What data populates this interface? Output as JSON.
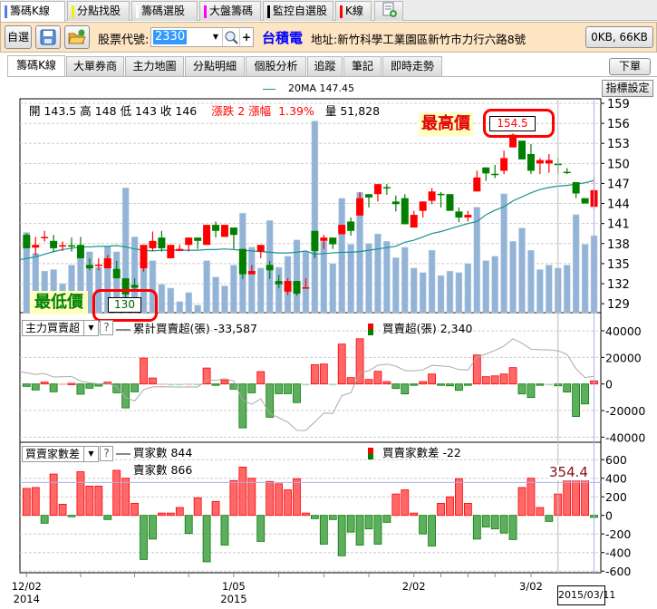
{
  "top_tabs": [
    {
      "label": "籌碼K線",
      "color": "#4a7ee8",
      "active": true
    },
    {
      "label": "分點找股",
      "color": "#f5f000"
    },
    {
      "label": "籌碼選股",
      "color": "#ffffff"
    },
    {
      "label": "大盤籌碼",
      "color": "#ff00ff"
    },
    {
      "label": "監控自選股",
      "color": "#000000"
    },
    {
      "label": "K線",
      "color": "#ff0000"
    }
  ],
  "toolbar": {
    "watchlist_label": "自選",
    "stock_code_label": "股票代號:",
    "stock_code_value": "2330",
    "add_label": "+",
    "stock_name": "台積電",
    "address": "地址:新竹科學工業園區新竹市力行六路8號",
    "size_label": "0KB, 66KB"
  },
  "sub_tabs": [
    "籌碼K線",
    "大單券商",
    "主力地圖",
    "分點明細",
    "個股分析",
    "追蹤",
    "筆記",
    "即時走勢"
  ],
  "order_button": "下單",
  "indicator_button": "指標設定",
  "price_panel": {
    "ma_legend": "20MA 147.45",
    "open_label": "開 143.5",
    "high_label": "高 148",
    "low_label": "低 143",
    "close_label": "收 146",
    "change_label": "漲跌 2",
    "pct_label": "漲幅",
    "pct_value": "1.39%",
    "volume_label": "量 51,828",
    "max_tag": "最高價",
    "max_value": "154.5",
    "min_tag": "最低價",
    "min_value": "130"
  },
  "net_panel": {
    "selector": "主力買賣超",
    "help": "?",
    "legend_cum": "累計買賣超(張) -33,587",
    "legend_net": "買賣超(張) 2,340"
  },
  "diff_panel": {
    "selector": "買賣家數差",
    "help": "?",
    "legend_buyers": "買家數 844",
    "legend_sellers": "賣家數 866",
    "legend_diff": "買賣家數差 -22",
    "crosshair_value": "354.4"
  },
  "cursor_date": "2015/03/11",
  "colors": {
    "up": "#ff0000",
    "down": "#007f00",
    "volume": "#93b4d6",
    "ma": "#1a9090",
    "toolbar": "#fde4c3",
    "link_blue": "#0000ff"
  },
  "chart_data": [
    {
      "type": "candlestick",
      "title": "",
      "ylim": [
        127.5,
        160
      ],
      "yticks": [
        159,
        156,
        153,
        150,
        147,
        144,
        141,
        138,
        135,
        132,
        129
      ],
      "grid": true,
      "ohlc": [
        [
          139.3,
          139.5,
          137.3,
          137.3
        ],
        [
          137.4,
          139.0,
          136.2,
          137.8
        ],
        [
          138.95,
          139.9,
          138.3,
          139.0
        ],
        [
          138.4,
          139.3,
          136.7,
          137.3
        ],
        [
          137.7,
          138.3,
          136.9,
          137.75
        ],
        [
          137.75,
          138.9,
          136.8,
          137.7
        ],
        [
          137.8,
          139.0,
          135.8,
          135.8
        ],
        [
          134.8,
          135.8,
          134.0,
          134.3
        ],
        [
          134.8,
          135.8,
          134.0,
          134.85
        ],
        [
          134.3,
          136.3,
          134.3,
          135.8
        ],
        [
          134.2,
          135.4,
          132.8,
          132.8
        ],
        [
          132.8,
          132.8,
          130.0,
          130.4
        ],
        [
          131.8,
          132.8,
          130.8,
          131.4
        ],
        [
          134.3,
          137.8,
          133.8,
          137.8
        ],
        [
          137.3,
          139.8,
          136.9,
          138.4
        ],
        [
          138.9,
          139.9,
          136.8,
          137.3
        ],
        [
          135.8,
          137.8,
          135.8,
          137.8
        ],
        [
          136.9,
          137.8,
          136.9,
          137.2
        ],
        [
          137.8,
          138.9,
          136.8,
          138.9
        ],
        [
          138.9,
          138.9,
          137.2,
          138.4
        ],
        [
          137.8,
          140.8,
          137.8,
          140.8
        ],
        [
          140.8,
          141.3,
          138.9,
          139.9
        ],
        [
          139.0,
          140.8,
          139.0,
          140.8
        ],
        [
          140.4,
          140.4,
          137.2,
          139.3
        ],
        [
          137.2,
          137.2,
          132.7,
          133.4
        ],
        [
          133.4,
          134.8,
          133.4,
          133.9
        ],
        [
          136.8,
          137.8,
          135.8,
          137.8
        ],
        [
          134.8,
          135.4,
          132.7,
          134.0
        ],
        [
          132.4,
          133.3,
          131.3,
          131.9
        ],
        [
          130.8,
          132.8,
          130.3,
          132.4
        ],
        [
          132.4,
          132.4,
          130.2,
          130.5
        ],
        [
          131.4,
          132.8,
          131.3,
          131.45
        ],
        [
          139.9,
          139.9,
          135.8,
          136.9
        ],
        [
          138.4,
          139.3,
          137.2,
          138.9
        ],
        [
          138.9,
          138.9,
          137.2,
          137.9
        ],
        [
          139.4,
          140.8,
          139.4,
          140.8
        ],
        [
          141.3,
          141.9,
          139.2,
          139.9
        ],
        [
          142.2,
          145.7,
          142.2,
          144.8
        ],
        [
          145.4,
          145.4,
          143.4,
          144.9
        ],
        [
          145.4,
          146.9,
          144.3,
          146.9
        ],
        [
          146.45,
          146.9,
          145.3,
          146.4
        ],
        [
          144.3,
          145.2,
          142.8,
          143.9
        ],
        [
          144.8,
          145.4,
          140.9,
          140.9
        ],
        [
          140.4,
          142.9,
          140.4,
          142.3
        ],
        [
          142.9,
          144.3,
          141.9,
          144.3
        ],
        [
          144.4,
          146.3,
          143.9,
          145.8
        ],
        [
          145.45,
          145.7,
          143.4,
          145.4
        ],
        [
          145.4,
          145.4,
          142.9,
          142.9
        ],
        [
          142.8,
          143.4,
          141.2,
          141.9
        ],
        [
          141.9,
          142.9,
          141.3,
          142.3
        ],
        [
          145.8,
          148.9,
          145.8,
          147.9
        ],
        [
          149.4,
          149.4,
          147.4,
          148.5
        ],
        [
          148.45,
          149.8,
          147.8,
          148.4
        ],
        [
          148.9,
          151.9,
          148.4,
          150.8
        ],
        [
          152.4,
          154.5,
          152.4,
          154.3
        ],
        [
          153.4,
          153.4,
          150.6,
          150.6
        ],
        [
          151.4,
          152.9,
          148.4,
          148.9
        ],
        [
          150.0,
          150.8,
          148.4,
          150.5
        ],
        [
          150.0,
          151.4,
          148.6,
          150.5
        ],
        [
          149.95,
          150.8,
          148.4,
          149.9
        ],
        [
          148.75,
          149.3,
          148.4,
          148.7
        ],
        [
          147.2,
          147.2,
          144.8,
          145.5
        ],
        [
          144.8,
          144.8,
          144.0,
          144.0
        ],
        [
          143.5,
          148,
          143,
          146
        ]
      ],
      "ma20": [
        135.6,
        136.0,
        136.4,
        136.8,
        137.1,
        137.3,
        137.5,
        137.5,
        137.6,
        137.6,
        137.7,
        137.5,
        137.2,
        137.0,
        136.9,
        137.0,
        137.0,
        137.0,
        137.0,
        137.0,
        137.1,
        137.1,
        137.2,
        137.1,
        137.0,
        136.9,
        136.8,
        136.7,
        136.6,
        136.6,
        136.7,
        136.9,
        136.4,
        136.5,
        136.6,
        136.7,
        136.7,
        136.8,
        137.0,
        137.2,
        137.4,
        137.6,
        138.2,
        138.5,
        139.0,
        139.5,
        139.8,
        140.2,
        140.6,
        141.0,
        141.3,
        142.3,
        143.0,
        143.5,
        144.4,
        145.0,
        145.6,
        146.1,
        146.4,
        146.6,
        146.7,
        146.9,
        147.1,
        147.45
      ],
      "volume": [
        54000,
        40000,
        28000,
        29000,
        19500,
        32000,
        45000,
        41000,
        30500,
        44500,
        41000,
        84000,
        51000,
        30000,
        35000,
        19000,
        16500,
        7500,
        13500,
        5000,
        35000,
        24000,
        18000,
        32000,
        67000,
        44000,
        30000,
        62000,
        30500,
        38000,
        49000,
        41000,
        129000,
        48000,
        33000,
        77000,
        46000,
        81000,
        46500,
        53000,
        48000,
        37000,
        44000,
        30000,
        27000,
        42000,
        25000,
        28000,
        27000,
        33000,
        71000,
        35000,
        38000,
        80000,
        48000,
        57000,
        42000,
        29000,
        32000,
        30000,
        32000,
        66000,
        46000,
        51828
      ]
    },
    {
      "type": "bar",
      "series": [
        {
          "name": "買賣超(張)",
          "values": [
            -1800,
            -4500,
            1400,
            -5900,
            300,
            500,
            -7700,
            -3200,
            -1600,
            1400,
            -6600,
            -18000,
            -5900,
            19500,
            4500,
            300,
            -300,
            -300,
            300,
            -300,
            12000,
            -700,
            3000,
            -3900,
            -33000,
            -6600,
            9300,
            -25000,
            -7300,
            -7300,
            -14000,
            -300,
            14500,
            15000,
            -300,
            30000,
            4800,
            34000,
            3400,
            9500,
            1800,
            -3400,
            -7500,
            -500,
            1800,
            7500,
            -900,
            -1400,
            -4800,
            -900,
            21800,
            5500,
            6100,
            7500,
            12300,
            -7500,
            -10200,
            -900,
            -300,
            -1400,
            -6100,
            -24500,
            -15000,
            2340
          ]
        },
        {
          "name": "累計買賣超(張)",
          "final": -33587
        }
      ],
      "ylim": [
        -45000,
        45000
      ],
      "yticks": [
        40000,
        20000,
        0,
        -20000,
        -40000
      ]
    },
    {
      "type": "bar",
      "series": [
        {
          "name": "買賣家數差",
          "values": [
            290,
            300,
            -85,
            445,
            120,
            -10,
            470,
            315,
            315,
            -45,
            485,
            400,
            130,
            -475,
            -255,
            25,
            25,
            85,
            -195,
            190,
            -500,
            150,
            -320,
            375,
            520,
            400,
            -280,
            365,
            340,
            275,
            395,
            25,
            -35,
            -310,
            -45,
            -435,
            -180,
            -320,
            -145,
            -310,
            -75,
            230,
            275,
            25,
            -200,
            -330,
            130,
            200,
            395,
            130,
            -255,
            -125,
            -145,
            -190,
            -260,
            300,
            400,
            85,
            -65,
            230,
            455,
            470,
            425,
            -22
          ]
        }
      ],
      "ylim": [
        -620,
        660
      ],
      "yticks": [
        600,
        400,
        200,
        0,
        -200,
        -400,
        -600
      ],
      "crosshair": 354.4
    }
  ],
  "x_axis": {
    "labels": [
      {
        "idx": 1,
        "date": "12/02",
        "year": "2014"
      },
      {
        "idx": 24,
        "date": "1/05",
        "year": "2015"
      },
      {
        "idx": 44,
        "date": "2/02",
        "year": ""
      },
      {
        "idx": 57,
        "date": "3/02",
        "year": ""
      }
    ],
    "ticks": [
      1,
      7,
      13,
      19,
      24,
      29,
      34,
      39,
      44,
      47,
      50,
      53,
      57
    ],
    "marker_idx": 60,
    "cursor_idx": 64
  }
}
